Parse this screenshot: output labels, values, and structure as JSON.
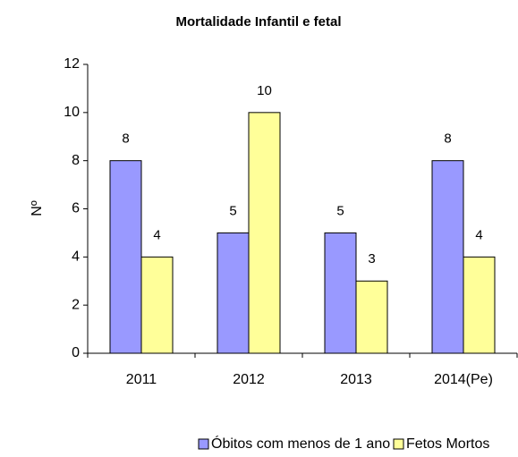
{
  "chart_data": {
    "type": "bar",
    "title": "Mortalidade Infantil e fetal",
    "y_label": "Nº",
    "categories": [
      "2011",
      "2012",
      "2013",
      "2014(Pe)"
    ],
    "series": [
      {
        "name": "Óbitos com menos de 1 ano",
        "color": "#9999ff",
        "values": [
          8,
          5,
          5,
          8
        ]
      },
      {
        "name": "Fetos Mortos",
        "color": "#ffff99",
        "values": [
          4,
          10,
          3,
          4
        ]
      }
    ],
    "ylim": [
      0,
      12
    ],
    "yticks": [
      0,
      2,
      4,
      6,
      8,
      10,
      12
    ]
  }
}
